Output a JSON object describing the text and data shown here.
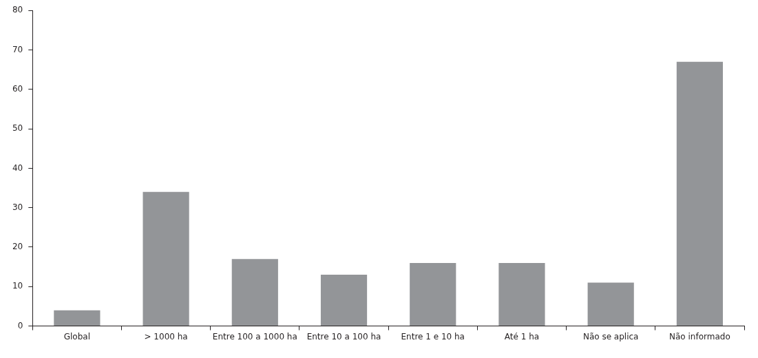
{
  "chart_data": {
    "type": "bar",
    "categories": [
      "Global",
      "> 1000 ha",
      "Entre 100 a 1000 ha",
      "Entre 10 a 100 ha",
      "Entre 1 e 10 ha",
      "Até 1 ha",
      "Não se aplica",
      "Não informado"
    ],
    "values": [
      4,
      34,
      17,
      13,
      16,
      16,
      11,
      67
    ],
    "color": "#939598",
    "ylim": [
      0,
      80
    ],
    "yticks": [
      0,
      10,
      20,
      30,
      40,
      50,
      60,
      70,
      80
    ],
    "grid": false,
    "legend": false
  }
}
